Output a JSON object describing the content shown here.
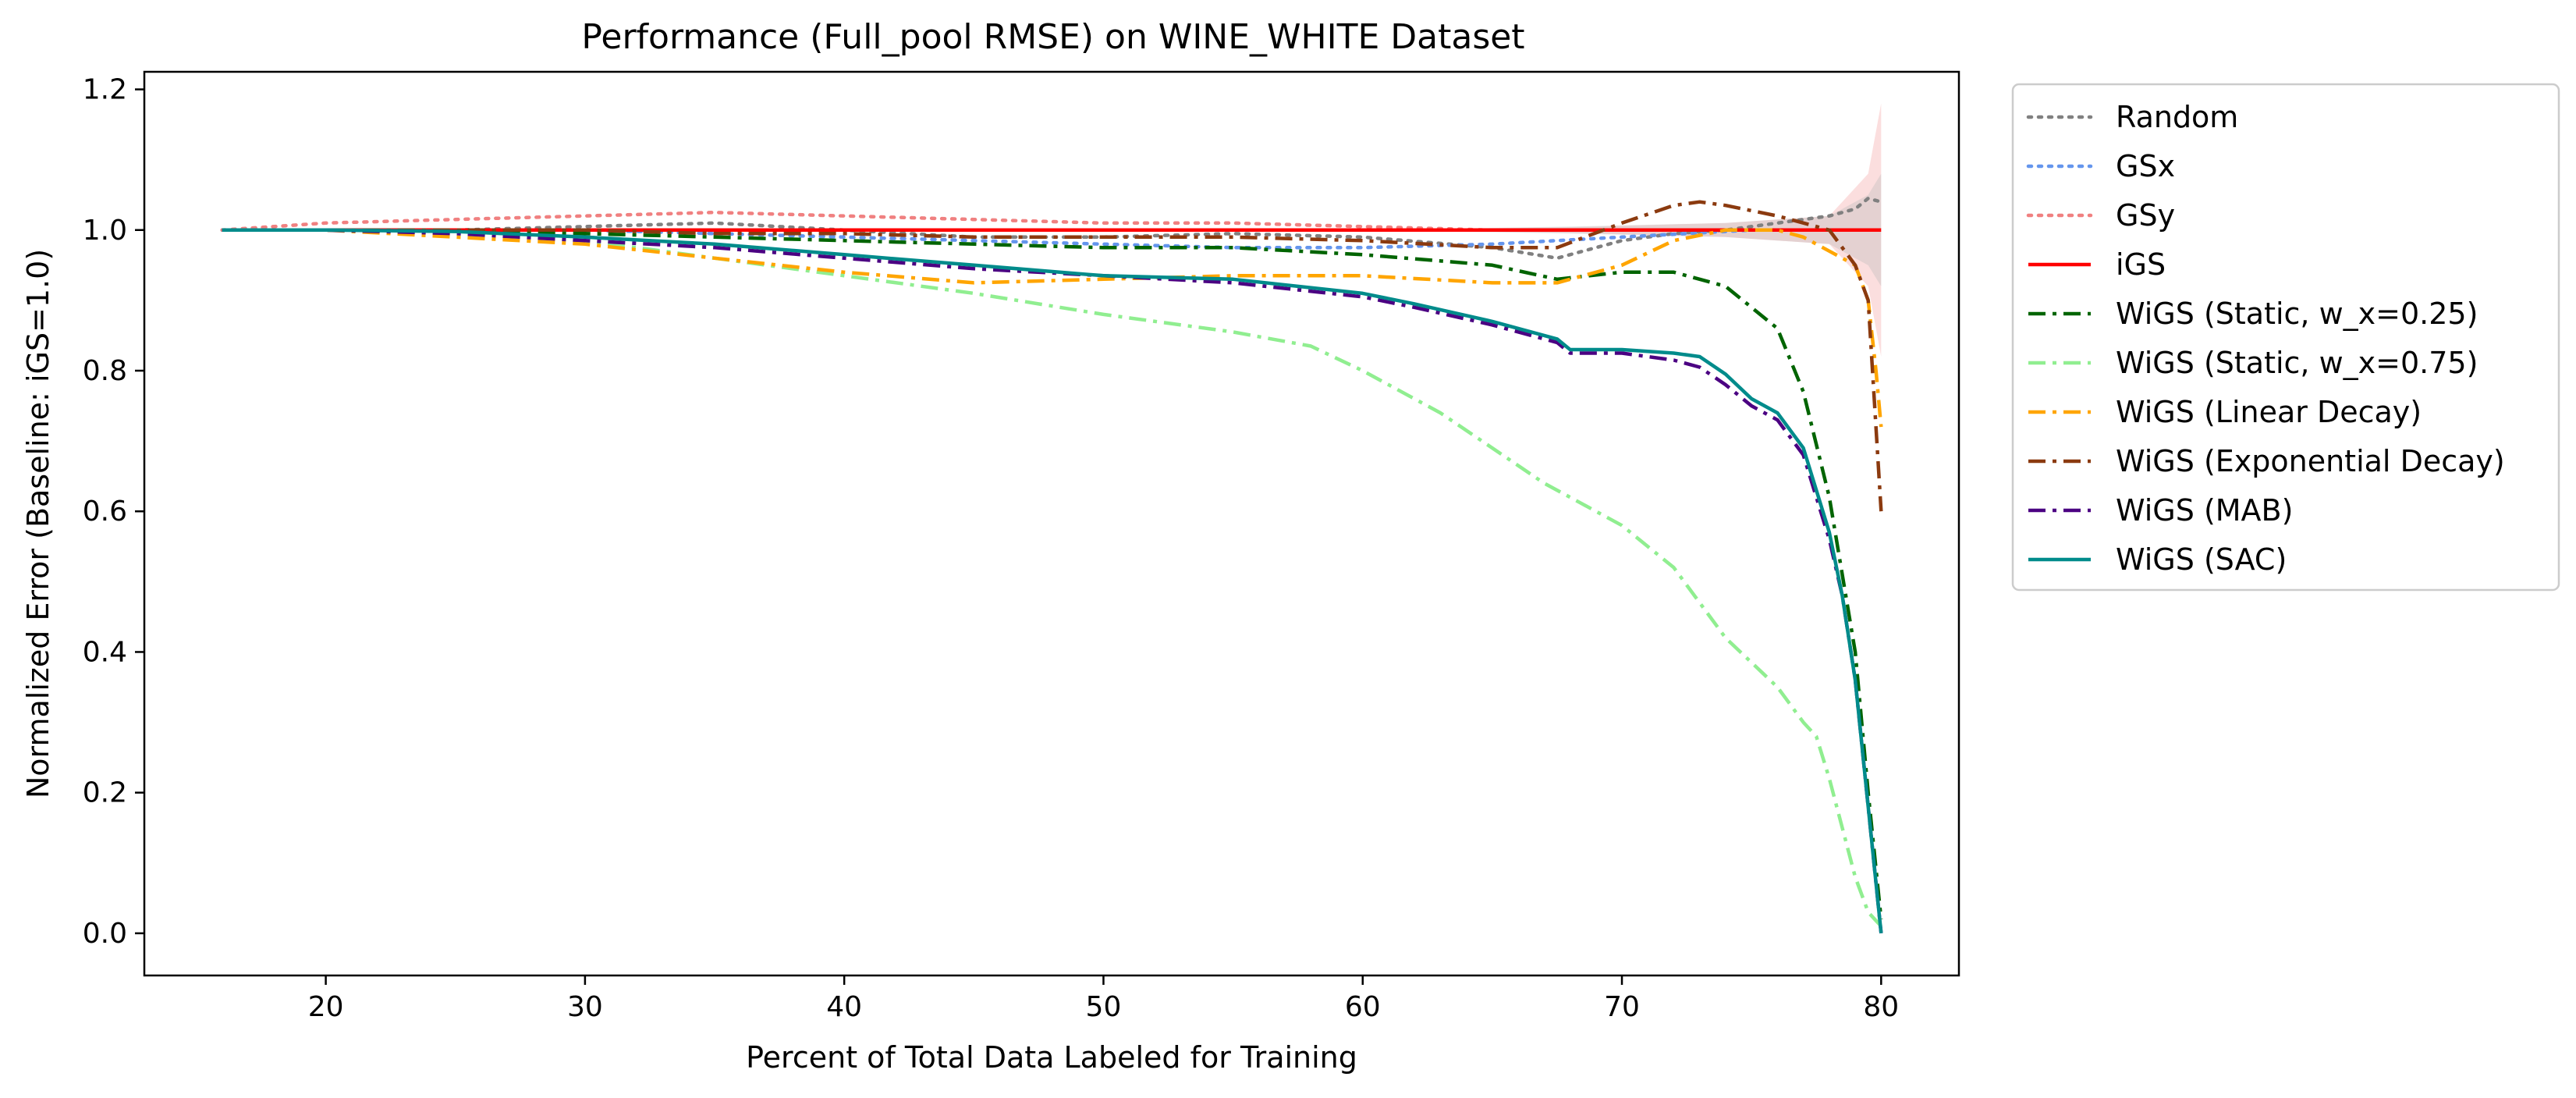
{
  "chart_data": {
    "type": "line",
    "title": "Performance (Full_pool RMSE) on WINE_WHITE Dataset",
    "xlabel": "Percent of Total Data Labeled for Training",
    "ylabel": "Normalized Error (Baseline: iGS=1.0)",
    "xlim": [
      13,
      83
    ],
    "ylim": [
      -0.06,
      1.225
    ],
    "xticks": [
      20,
      30,
      40,
      50,
      60,
      70,
      80
    ],
    "yticks": [
      0.0,
      0.2,
      0.4,
      0.6,
      0.8,
      1.0,
      1.2
    ],
    "ytick_labels": [
      "0.0",
      "0.2",
      "0.4",
      "0.6",
      "0.8",
      "1.0",
      "1.2"
    ],
    "grid": false,
    "legend_position": "outside-right",
    "series": [
      {
        "name": "Random",
        "color": "#808080",
        "dash": "dotted",
        "x": [
          16,
          20,
          25,
          30,
          35,
          40,
          45,
          50,
          55,
          60,
          65,
          67.5,
          70,
          72,
          74,
          76,
          78,
          79,
          79.5,
          80
        ],
        "y": [
          1.0,
          1.0,
          1.0,
          1.005,
          1.01,
          1.0,
          0.99,
          0.99,
          0.995,
          0.99,
          0.975,
          0.96,
          0.985,
          0.995,
          1.0,
          1.01,
          1.02,
          1.03,
          1.045,
          1.04
        ]
      },
      {
        "name": "GSx",
        "color": "#6495ed",
        "dash": "dotted",
        "x": [
          16,
          20,
          25,
          30,
          35,
          40,
          45,
          50,
          55,
          60,
          65,
          70,
          75,
          78,
          80
        ],
        "y": [
          1.0,
          1.0,
          1.0,
          1.0,
          0.995,
          0.99,
          0.985,
          0.98,
          0.975,
          0.975,
          0.98,
          0.99,
          1.0,
          1.0,
          1.0
        ]
      },
      {
        "name": "GSy",
        "color": "#f08080",
        "dash": "dotted",
        "x": [
          16,
          20,
          25,
          30,
          35,
          40,
          45,
          50,
          55,
          60,
          65,
          70,
          75,
          78,
          80
        ],
        "y": [
          1.0,
          1.01,
          1.015,
          1.02,
          1.025,
          1.02,
          1.015,
          1.01,
          1.01,
          1.005,
          1.0,
          1.0,
          1.0,
          1.0,
          1.0
        ]
      },
      {
        "name": "iGS",
        "color": "#ff0000",
        "dash": "solid",
        "x": [
          16,
          80
        ],
        "y": [
          1.0,
          1.0
        ]
      },
      {
        "name": "WiGS (Static, w_x=0.25)",
        "color": "#006400",
        "dash": "dashdot",
        "x": [
          16,
          20,
          25,
          30,
          35,
          40,
          45,
          50,
          55,
          60,
          65,
          67.5,
          70,
          72,
          74,
          76,
          77,
          78,
          79,
          79.5,
          80
        ],
        "y": [
          1.0,
          1.0,
          0.998,
          0.995,
          0.99,
          0.985,
          0.98,
          0.975,
          0.975,
          0.965,
          0.95,
          0.93,
          0.94,
          0.94,
          0.92,
          0.86,
          0.77,
          0.62,
          0.4,
          0.2,
          0.02
        ]
      },
      {
        "name": "WiGS (Static, w_x=0.75)",
        "color": "#90ee90",
        "dash": "dashdot",
        "x": [
          16,
          20,
          25,
          30,
          35,
          40,
          45,
          50,
          55,
          58,
          60,
          63,
          65,
          67,
          68,
          70,
          72,
          74,
          76,
          77,
          77.5,
          78,
          78.5,
          79,
          79.5,
          80
        ],
        "y": [
          1.0,
          1.0,
          0.995,
          0.985,
          0.96,
          0.935,
          0.91,
          0.88,
          0.855,
          0.835,
          0.8,
          0.74,
          0.69,
          0.64,
          0.62,
          0.58,
          0.52,
          0.42,
          0.35,
          0.3,
          0.28,
          0.22,
          0.15,
          0.08,
          0.03,
          0.01
        ]
      },
      {
        "name": "WiGS (Linear Decay)",
        "color": "#ffa500",
        "dash": "dashdot",
        "x": [
          16,
          20,
          25,
          30,
          35,
          40,
          45,
          50,
          55,
          60,
          65,
          67.5,
          70,
          72,
          74,
          76,
          77,
          78,
          79,
          79.5,
          79.8,
          80
        ],
        "y": [
          1.0,
          1.0,
          0.99,
          0.98,
          0.96,
          0.94,
          0.925,
          0.93,
          0.935,
          0.935,
          0.925,
          0.925,
          0.95,
          0.985,
          1.0,
          1.0,
          0.99,
          0.97,
          0.95,
          0.9,
          0.8,
          0.72
        ]
      },
      {
        "name": "WiGS (Exponential Decay)",
        "color": "#8b3a0f",
        "dash": "dashdot",
        "x": [
          16,
          20,
          25,
          30,
          35,
          40,
          45,
          50,
          55,
          60,
          65,
          67.5,
          70,
          72,
          73,
          74,
          76,
          78,
          79,
          79.5,
          80
        ],
        "y": [
          1.0,
          1.0,
          1.0,
          1.0,
          0.995,
          0.995,
          0.99,
          0.99,
          0.99,
          0.985,
          0.975,
          0.975,
          1.01,
          1.035,
          1.04,
          1.035,
          1.02,
          1.0,
          0.95,
          0.9,
          0.6
        ]
      },
      {
        "name": "WiGS (MAB)",
        "color": "#4b0082",
        "dash": "dashdot",
        "x": [
          16,
          20,
          25,
          30,
          35,
          40,
          45,
          50,
          55,
          60,
          62,
          65,
          67.5,
          68,
          70,
          72,
          73,
          74,
          75,
          76,
          77,
          78,
          78.5,
          79,
          79.5,
          80
        ],
        "y": [
          1.0,
          1.0,
          0.995,
          0.985,
          0.975,
          0.96,
          0.945,
          0.935,
          0.925,
          0.905,
          0.89,
          0.865,
          0.84,
          0.825,
          0.825,
          0.815,
          0.805,
          0.78,
          0.75,
          0.73,
          0.68,
          0.56,
          0.48,
          0.36,
          0.18,
          0.0
        ]
      },
      {
        "name": "WiGS (SAC)",
        "color": "#008b8b",
        "dash": "solid",
        "x": [
          16,
          20,
          25,
          30,
          35,
          40,
          45,
          50,
          55,
          60,
          62,
          65,
          67.5,
          68,
          70,
          72,
          73,
          74,
          75,
          76,
          77,
          78,
          78.5,
          79,
          79.5,
          80
        ],
        "y": [
          1.0,
          1.0,
          0.998,
          0.99,
          0.98,
          0.965,
          0.95,
          0.935,
          0.93,
          0.91,
          0.895,
          0.87,
          0.845,
          0.83,
          0.83,
          0.825,
          0.82,
          0.795,
          0.76,
          0.74,
          0.69,
          0.57,
          0.48,
          0.36,
          0.18,
          0.0
        ]
      }
    ]
  }
}
